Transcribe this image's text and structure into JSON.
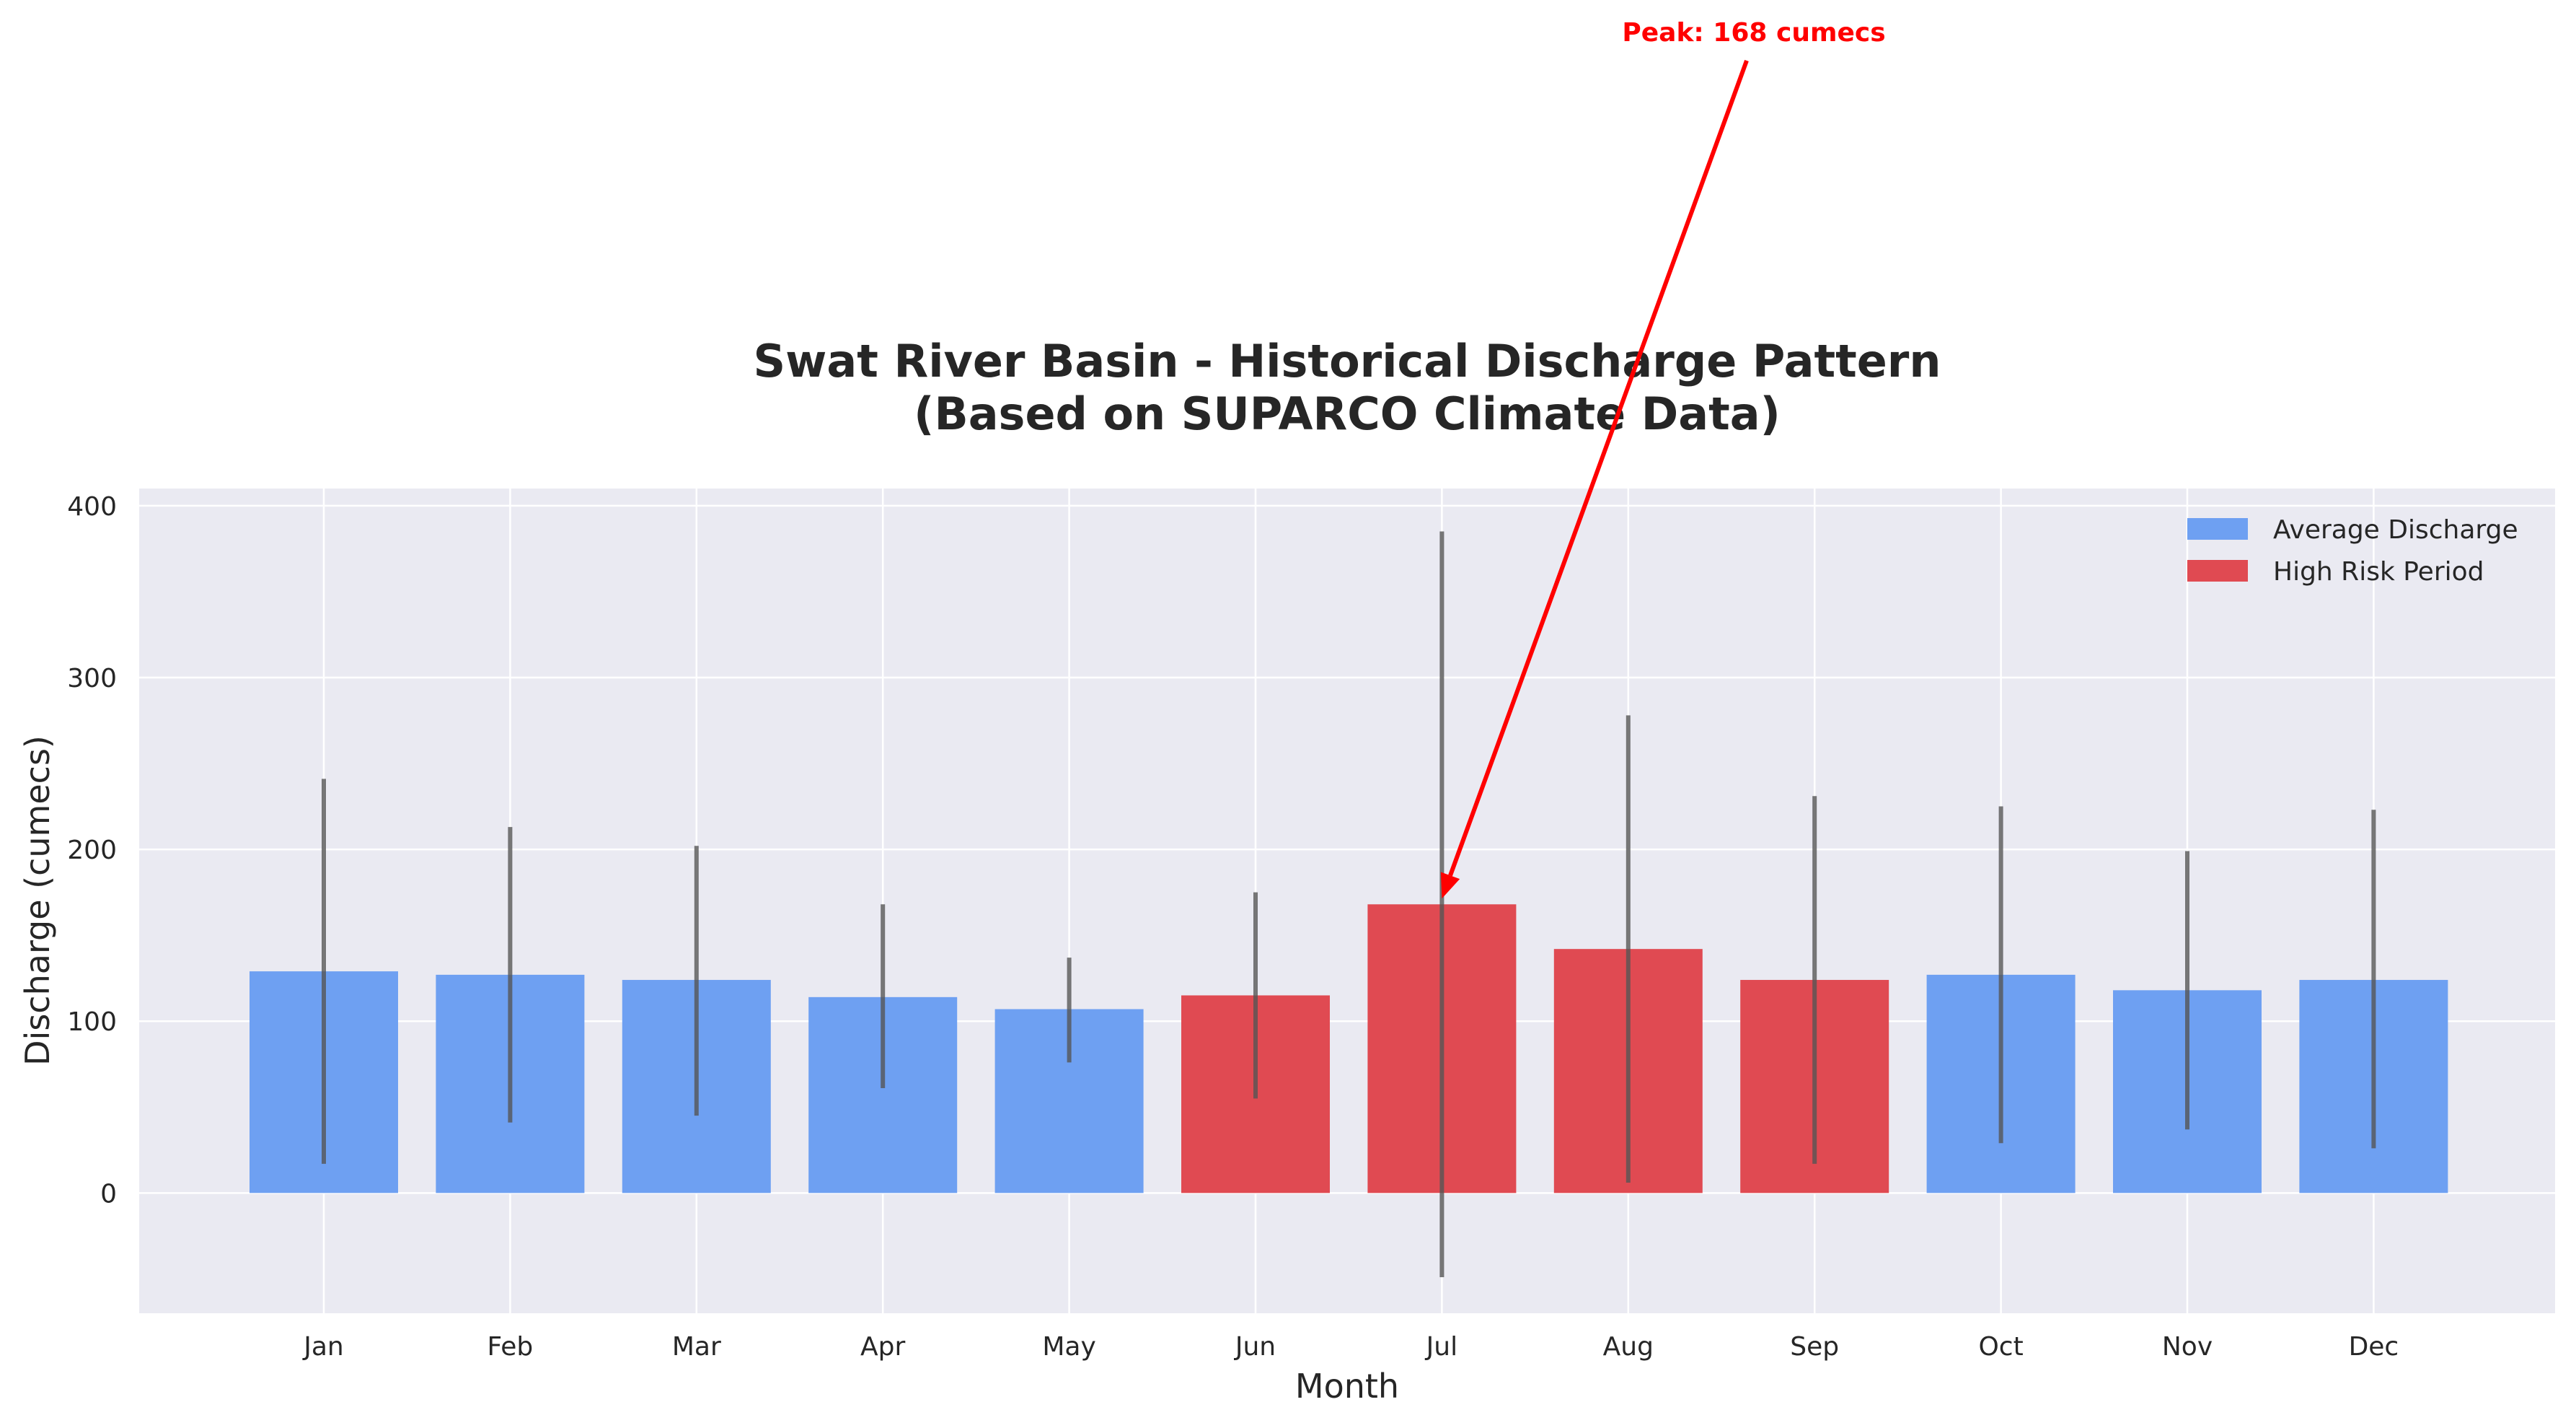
{
  "chart_data": {
    "type": "bar",
    "title": "Swat River Basin - Historical Discharge Pattern",
    "subtitle": "(Based on SUPARCO Climate Data)",
    "xlabel": "Month",
    "ylabel": "Discharge (cumecs)",
    "categories": [
      "Jan",
      "Feb",
      "Mar",
      "Apr",
      "May",
      "Jun",
      "Jul",
      "Aug",
      "Sep",
      "Oct",
      "Nov",
      "Dec"
    ],
    "series": [
      {
        "name": "Average Discharge",
        "values": [
          129,
          127,
          124,
          114,
          107,
          115,
          168,
          142,
          124,
          127,
          118,
          124
        ]
      }
    ],
    "error_bars": {
      "lower": [
        17,
        41,
        45,
        61,
        76,
        55,
        -49,
        6,
        17,
        29,
        37,
        26
      ],
      "upper": [
        241,
        213,
        202,
        168,
        137,
        175,
        385,
        278,
        231,
        225,
        199,
        223
      ]
    },
    "high_risk_months": [
      "Jun",
      "Jul",
      "Aug",
      "Sep"
    ],
    "legend": [
      {
        "label": "Average Discharge",
        "color": "#6ea0f2"
      },
      {
        "label": "High Risk Period",
        "color": "#e04a52"
      }
    ],
    "legend_position": "top-right",
    "yticks": [
      0,
      100,
      200,
      300,
      400
    ],
    "ylim": [
      -70,
      410
    ],
    "grid": true,
    "annotation": {
      "text": "Peak: 168 cumecs",
      "target_category": "Jul",
      "target_value": 168,
      "color": "#ff0000"
    },
    "colors": {
      "normal": "#6ea0f2",
      "high_risk": "#e04a52",
      "error_bar": "#555555",
      "plot_background": "#eaeaf2",
      "grid": "#ffffff"
    }
  }
}
